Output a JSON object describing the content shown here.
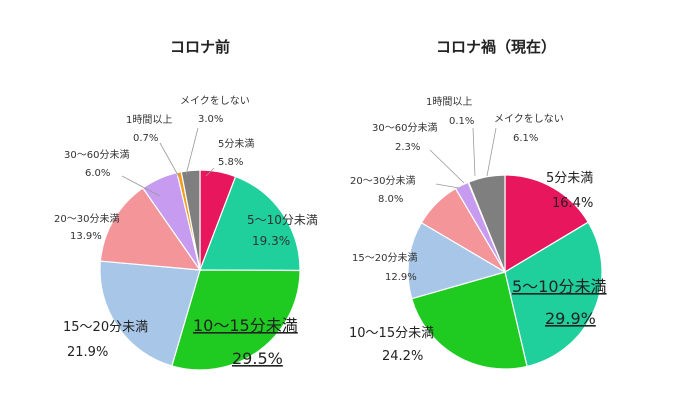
{
  "chart_data": [
    {
      "type": "pie",
      "title": "コロナ前",
      "start": "top",
      "direction": "clockwise",
      "slices": [
        {
          "label": "5分未満",
          "value": 5.8,
          "pct": "5.8%",
          "color": "#e8175d"
        },
        {
          "label": "5～10分未満",
          "value": 19.3,
          "pct": "19.3%",
          "color": "#1fcf9c"
        },
        {
          "label": "10～15分未満",
          "value": 29.5,
          "pct": "29.5%",
          "color": "#1fcb20"
        },
        {
          "label": "15～20分未満",
          "value": 21.9,
          "pct": "21.9%",
          "color": "#a7c6e8"
        },
        {
          "label": "20～30分未満",
          "value": 13.9,
          "pct": "13.9%",
          "color": "#f4959a"
        },
        {
          "label": "30～60分未満",
          "value": 6.0,
          "pct": "6.0%",
          "color": "#c79cf0"
        },
        {
          "label": "1時間以上",
          "value": 0.7,
          "pct": "0.7%",
          "color": "#f39c1e"
        },
        {
          "label": "メイクをしない",
          "value": 3.0,
          "pct": "3.0%",
          "color": "#7f7f7f"
        }
      ]
    },
    {
      "type": "pie",
      "title": "コロナ禍（現在）",
      "start": "top",
      "direction": "clockwise",
      "slices": [
        {
          "label": "5分未満",
          "value": 16.4,
          "pct": "16.4%",
          "color": "#e8175d"
        },
        {
          "label": "5～10分未満",
          "value": 29.9,
          "pct": "29.9%",
          "color": "#1fcf9c"
        },
        {
          "label": "10～15分未満",
          "value": 24.2,
          "pct": "24.2%",
          "color": "#1fcb20"
        },
        {
          "label": "15～20分未満",
          "value": 12.9,
          "pct": "12.9%",
          "color": "#a7c6e8"
        },
        {
          "label": "20～30分未満",
          "value": 8.0,
          "pct": "8.0%",
          "color": "#f4959a"
        },
        {
          "label": "30～60分未満",
          "value": 2.3,
          "pct": "2.3%",
          "color": "#c79cf0"
        },
        {
          "label": "1時間以上",
          "value": 0.1,
          "pct": "0.1%",
          "color": "#f39c1e"
        },
        {
          "label": "メイクをしない",
          "value": 6.1,
          "pct": "6.1%",
          "color": "#7f7f7f"
        }
      ]
    }
  ]
}
